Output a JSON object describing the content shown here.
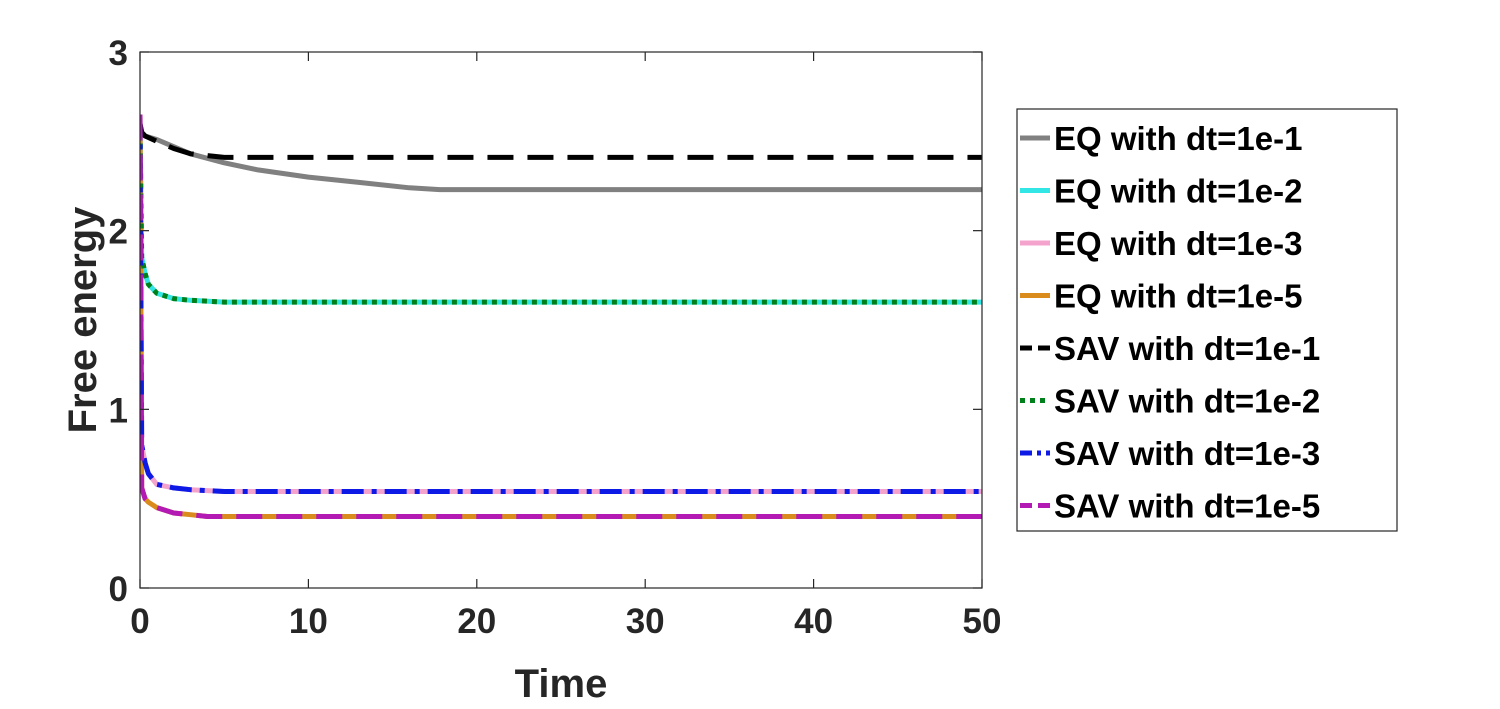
{
  "chart_data": {
    "type": "line",
    "title": "",
    "xlabel": "Time",
    "ylabel": "Free energy",
    "xlim": [
      0,
      50
    ],
    "ylim": [
      0,
      3
    ],
    "xticks": [
      0,
      10,
      20,
      30,
      40,
      50
    ],
    "yticks": [
      0,
      1,
      2,
      3
    ],
    "grid": false,
    "legend_position": "outside-right",
    "series": [
      {
        "name": "EQ with dt=1e-1",
        "color": "#808080",
        "dash": "solid",
        "x": [
          0,
          0.1,
          0.3,
          1,
          2,
          3,
          5,
          7,
          10,
          13,
          16,
          17.8,
          20,
          30,
          40,
          50
        ],
        "y": [
          2.6,
          2.55,
          2.53,
          2.51,
          2.47,
          2.43,
          2.38,
          2.34,
          2.3,
          2.27,
          2.24,
          2.23,
          2.23,
          2.23,
          2.23,
          2.23
        ]
      },
      {
        "name": "EQ with dt=1e-2",
        "color": "#33e6e6",
        "dash": "solid",
        "x": [
          0,
          0.1,
          0.3,
          0.5,
          1,
          2,
          3,
          5,
          10,
          20,
          30,
          40,
          50
        ],
        "y": [
          2.6,
          1.85,
          1.76,
          1.7,
          1.65,
          1.62,
          1.61,
          1.6,
          1.6,
          1.6,
          1.6,
          1.6,
          1.6
        ]
      },
      {
        "name": "EQ with dt=1e-3",
        "color": "#f4a3cc",
        "dash": "solid",
        "x": [
          0,
          0.1,
          0.3,
          0.5,
          1,
          2,
          3,
          5,
          10,
          20,
          30,
          40,
          50
        ],
        "y": [
          2.65,
          0.8,
          0.7,
          0.64,
          0.58,
          0.56,
          0.55,
          0.54,
          0.54,
          0.54,
          0.54,
          0.54,
          0.54
        ]
      },
      {
        "name": "EQ with dt=1e-5",
        "color": "#d98b1c",
        "dash": "solid",
        "x": [
          0,
          0.1,
          0.3,
          0.5,
          1,
          2,
          3,
          4,
          10,
          20,
          30,
          40,
          50
        ],
        "y": [
          2.65,
          0.56,
          0.5,
          0.48,
          0.45,
          0.42,
          0.41,
          0.4,
          0.4,
          0.4,
          0.4,
          0.4,
          0.4
        ]
      },
      {
        "name": "SAV with dt=1e-1",
        "color": "#000000",
        "dash": "dashed",
        "x": [
          0,
          0.1,
          0.3,
          1,
          2,
          3,
          4,
          5,
          10,
          20,
          30,
          40,
          50
        ],
        "y": [
          2.6,
          2.55,
          2.53,
          2.5,
          2.46,
          2.43,
          2.42,
          2.41,
          2.41,
          2.41,
          2.41,
          2.41,
          2.41
        ]
      },
      {
        "name": "SAV with dt=1e-2",
        "color": "#00801a",
        "dash": "dotted",
        "x": [
          0,
          0.1,
          0.3,
          0.5,
          1,
          2,
          3,
          5,
          10,
          20,
          30,
          40,
          50
        ],
        "y": [
          2.6,
          1.85,
          1.76,
          1.7,
          1.65,
          1.62,
          1.61,
          1.6,
          1.6,
          1.6,
          1.6,
          1.6,
          1.6
        ]
      },
      {
        "name": "SAV with dt=1e-3",
        "color": "#0d1ae6",
        "dash": "dashdot",
        "x": [
          0,
          0.1,
          0.3,
          0.5,
          1,
          2,
          3,
          5,
          10,
          20,
          30,
          40,
          50
        ],
        "y": [
          2.65,
          0.8,
          0.7,
          0.64,
          0.58,
          0.56,
          0.55,
          0.54,
          0.54,
          0.54,
          0.54,
          0.54,
          0.54
        ]
      },
      {
        "name": "SAV with dt=1e-5",
        "color": "#b31ab3",
        "dash": "dashed",
        "x": [
          0,
          0.1,
          0.3,
          0.5,
          1,
          2,
          3,
          4,
          10,
          20,
          30,
          40,
          50
        ],
        "y": [
          2.65,
          0.56,
          0.5,
          0.48,
          0.45,
          0.42,
          0.41,
          0.4,
          0.4,
          0.4,
          0.4,
          0.4,
          0.4
        ]
      }
    ]
  }
}
